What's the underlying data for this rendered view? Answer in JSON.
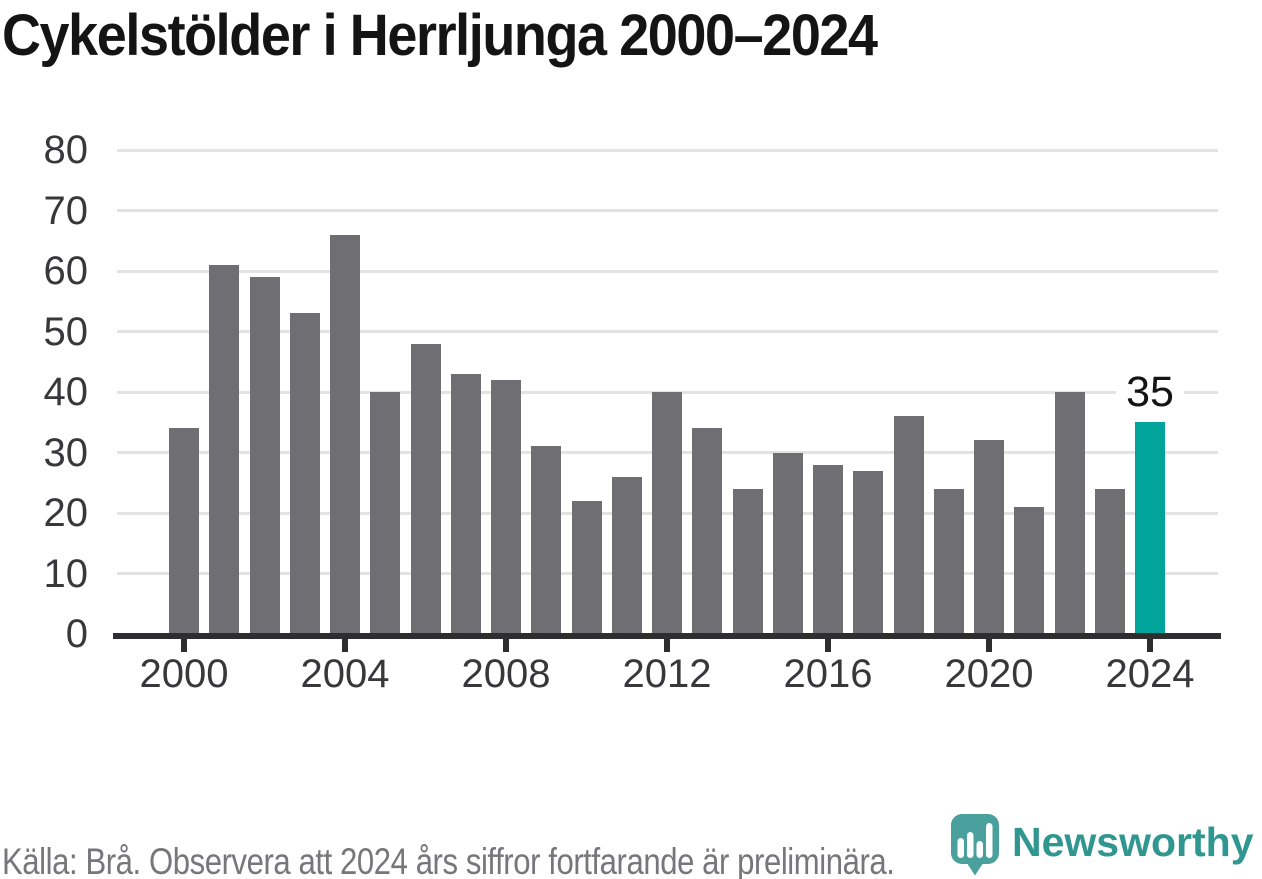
{
  "title": "Cykelstölder i Herrljunga 2000–2024",
  "chart_data": {
    "type": "bar",
    "categories": [
      2000,
      2001,
      2002,
      2003,
      2004,
      2005,
      2006,
      2007,
      2008,
      2009,
      2010,
      2011,
      2012,
      2013,
      2014,
      2015,
      2016,
      2017,
      2018,
      2019,
      2020,
      2021,
      2022,
      2023,
      2024
    ],
    "values": [
      34,
      61,
      59,
      53,
      66,
      40,
      48,
      43,
      42,
      31,
      22,
      26,
      40,
      34,
      24,
      30,
      28,
      27,
      36,
      24,
      32,
      21,
      40,
      24,
      35
    ],
    "title": "Cykelstölder i Herrljunga 2000–2024",
    "xlabel": "",
    "ylabel": "",
    "ylim": [
      0,
      80
    ],
    "y_ticks": [
      0,
      10,
      20,
      30,
      40,
      50,
      60,
      70,
      80
    ],
    "x_tick_labels": [
      2000,
      2004,
      2008,
      2012,
      2016,
      2020,
      2024
    ],
    "grid": true,
    "legend": "none",
    "bar_color": "#6e6e73",
    "highlight_category": 2024,
    "highlight_color": "#00a49a",
    "data_label": {
      "category": 2024,
      "text": "35"
    }
  },
  "footer": {
    "source_text": "Källa: Brå. Observera att 2024 års siffror fortfarande är preliminära."
  },
  "branding": {
    "name": "Newsworthy",
    "logo_icon": "map-pin-with-bar-chart",
    "logo_color": "#4aa09c",
    "text_color": "#2f9790"
  }
}
